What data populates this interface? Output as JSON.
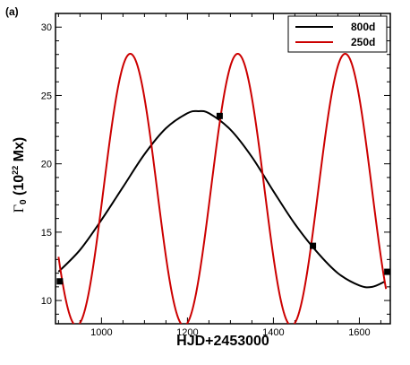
{
  "panel_label": "(a)",
  "chart_data": {
    "type": "line",
    "title": "",
    "xlabel": "HJD+2453000",
    "ylabel": {
      "symbol": "Γ",
      "sub": "0",
      "pre": " (10",
      "sup": "22",
      "post": " Mx)"
    },
    "xlim": [
      893,
      1672
    ],
    "ylim": [
      8.3,
      31
    ],
    "xticks": [
      1000,
      1200,
      1400,
      1600
    ],
    "yticks": [
      10,
      15,
      20,
      25,
      30
    ],
    "grid": false,
    "legend_position": "top-right",
    "series": [
      {
        "name": "800d",
        "color": "#000000",
        "x": [
          900,
          950,
          1000,
          1050,
          1100,
          1150,
          1200,
          1225,
          1250,
          1300,
          1350,
          1400,
          1450,
          1500,
          1550,
          1600,
          1630,
          1660
        ],
        "y": [
          12.1,
          13.7,
          15.9,
          18.3,
          20.7,
          22.6,
          23.7,
          23.85,
          23.7,
          22.5,
          20.5,
          18.0,
          15.6,
          13.6,
          12.0,
          11.1,
          11.0,
          11.4
        ]
      },
      {
        "name": "250d",
        "color": "#cc0000",
        "period": 250,
        "mean": 18.1,
        "amplitude": 9.95,
        "peak_x": 1067,
        "x_range": [
          900,
          1663
        ]
      }
    ],
    "markers": {
      "shape": "square",
      "color": "#000000",
      "points": [
        {
          "x": 903,
          "y": 11.4
        },
        {
          "x": 1275,
          "y": 23.5
        },
        {
          "x": 1492,
          "y": 14.0
        },
        {
          "x": 1665,
          "y": 12.1
        }
      ]
    }
  }
}
